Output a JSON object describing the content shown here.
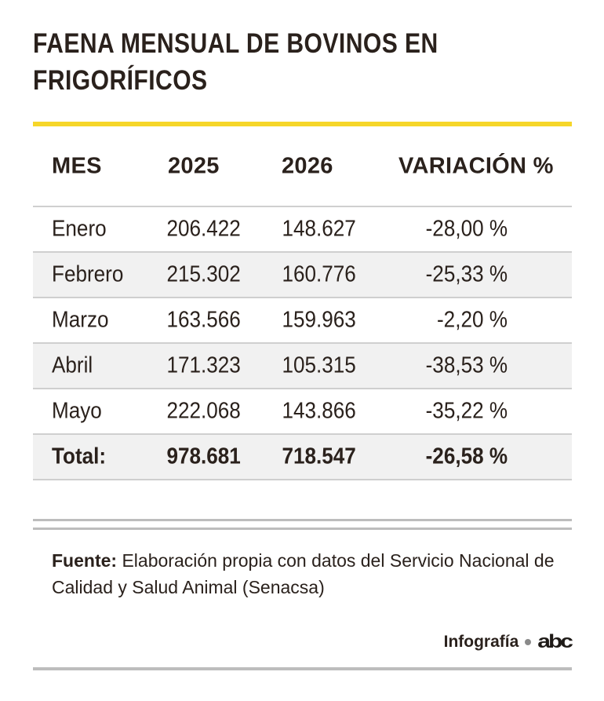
{
  "title": "FAENA MENSUAL DE BOVINOS EN FRIGORÍFICOS",
  "chart_data": {
    "type": "table",
    "columns": [
      "MES",
      "2025",
      "2026",
      "VARIACIÓN %"
    ],
    "rows": [
      {
        "mes": "Enero",
        "y2025": "206.422",
        "y2026": "148.627",
        "variacion": "-28,00 %"
      },
      {
        "mes": "Febrero",
        "y2025": "215.302",
        "y2026": "160.776",
        "variacion": "-25,33 %"
      },
      {
        "mes": "Marzo",
        "y2025": "163.566",
        "y2026": "159.963",
        "variacion": "-2,20 %"
      },
      {
        "mes": "Abril",
        "y2025": "171.323",
        "y2026": "105.315",
        "variacion": "-38,53 %"
      },
      {
        "mes": "Mayo",
        "y2025": "222.068",
        "y2026": "143.866",
        "variacion": "-35,22 %"
      }
    ],
    "total": {
      "mes": "Total:",
      "y2025": "978.681",
      "y2026": "718.547",
      "variacion": "-26,58 %"
    }
  },
  "source": {
    "label": "Fuente:",
    "text": "Elaboración propia con datos del Servicio Nacional de Calidad y Salud Animal (Senacsa)"
  },
  "credit": {
    "label": "Infografía",
    "logo": "abc"
  },
  "colors": {
    "accent": "#f6d629",
    "text": "#2a211c",
    "alt_row": "#f1f1f1",
    "rule": "#bdbdbd"
  }
}
